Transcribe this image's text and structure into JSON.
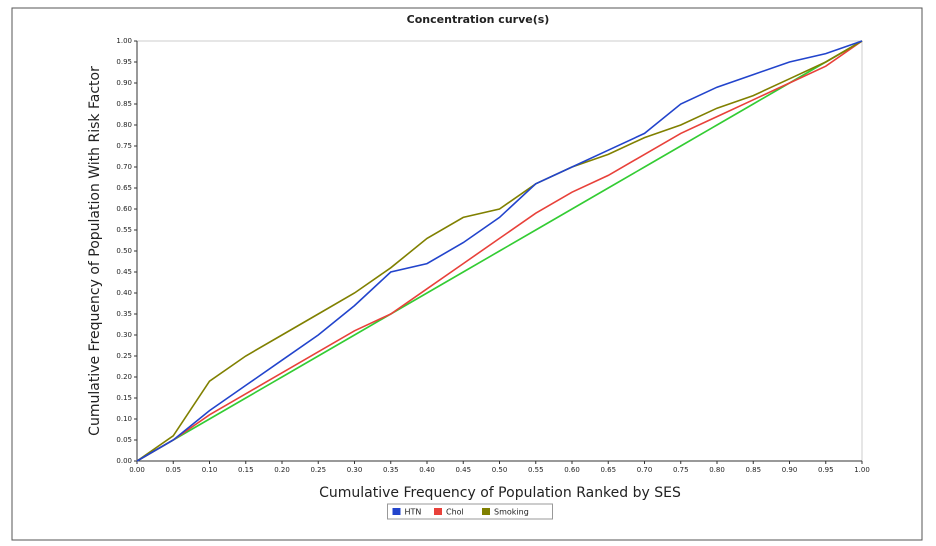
{
  "chart_data": {
    "type": "line",
    "title": "Concentration curve(s)",
    "x_label": "Cumulative Frequency of Population Ranked by SES",
    "y_label": "Cumulative Frequency of Population With Risk Factor",
    "x": [
      0,
      0.05,
      0.1,
      0.15,
      0.2,
      0.25,
      0.3,
      0.35,
      0.4,
      0.45,
      0.5,
      0.55,
      0.6,
      0.65,
      0.7,
      0.75,
      0.8,
      0.85,
      0.9,
      0.95,
      1
    ],
    "series": [
      {
        "color": "#33cc33",
        "values": [
          0,
          0.05,
          0.1,
          0.15,
          0.2,
          0.25,
          0.3,
          0.35,
          0.4,
          0.45,
          0.5,
          0.55,
          0.6,
          0.65,
          0.7,
          0.75,
          0.8,
          0.85,
          0.9,
          0.95,
          1
        ]
      },
      {
        "name": "Chol",
        "color": "#e8413a",
        "values": [
          0,
          0.05,
          0.11,
          0.16,
          0.21,
          0.26,
          0.31,
          0.35,
          0.41,
          0.47,
          0.53,
          0.59,
          0.64,
          0.68,
          0.73,
          0.78,
          0.82,
          0.86,
          0.9,
          0.94,
          1
        ]
      },
      {
        "name": "Smoking",
        "color": "#808000",
        "values": [
          0,
          0.06,
          0.19,
          0.25,
          0.3,
          0.35,
          0.4,
          0.46,
          0.53,
          0.58,
          0.6,
          0.66,
          0.7,
          0.73,
          0.77,
          0.8,
          0.84,
          0.87,
          0.91,
          0.95,
          1
        ]
      },
      {
        "name": "HTN",
        "color": "#2244cc",
        "values": [
          0,
          0.05,
          0.12,
          0.18,
          0.24,
          0.3,
          0.37,
          0.45,
          0.47,
          0.52,
          0.58,
          0.66,
          0.7,
          0.74,
          0.78,
          0.85,
          0.89,
          0.92,
          0.95,
          0.97,
          1
        ]
      }
    ],
    "legend_order": [
      "HTN",
      "Chol",
      "Smoking"
    ],
    "xlim": [
      0,
      1
    ],
    "ylim": [
      0,
      1
    ],
    "xticks": [
      {
        "value": 0,
        "label": "0.00"
      },
      0.05,
      {
        "value": 0.1,
        "label": "0.10"
      },
      0.15,
      {
        "value": 0.2,
        "label": "0.20"
      },
      0.25,
      {
        "value": 0.3,
        "label": "0.30"
      },
      0.35,
      {
        "value": 0.4,
        "label": "0.40"
      },
      0.45,
      {
        "value": 0.5,
        "label": "0.50"
      },
      0.55,
      {
        "value": 0.6,
        "label": "0.60"
      },
      0.65,
      {
        "value": 0.7,
        "label": "0.70"
      },
      0.75,
      {
        "value": 0.8,
        "label": "0.80"
      },
      0.85,
      {
        "value": 0.9,
        "label": "0.90"
      },
      0.95,
      {
        "value": 1,
        "label": "1.00"
      }
    ],
    "yticks": [
      {
        "value": 0,
        "label": "0.00"
      },
      0.05,
      {
        "value": 0.1,
        "label": "0.10"
      },
      0.15,
      {
        "value": 0.2,
        "label": "0.20"
      },
      0.25,
      {
        "value": 0.3,
        "label": "0.30"
      },
      0.35,
      {
        "value": 0.4,
        "label": "0.40"
      },
      0.45,
      {
        "value": 0.5,
        "label": "0.50"
      },
      0.55,
      {
        "value": 0.6,
        "label": "0.60"
      },
      0.65,
      {
        "value": 0.7,
        "label": "0.70"
      },
      0.75,
      {
        "value": 0.8,
        "label": "0.80"
      },
      0.85,
      {
        "value": 0.9,
        "label": "0.90"
      },
      0.95,
      {
        "value": 1,
        "label": "1.00"
      }
    ],
    "grid": false
  }
}
